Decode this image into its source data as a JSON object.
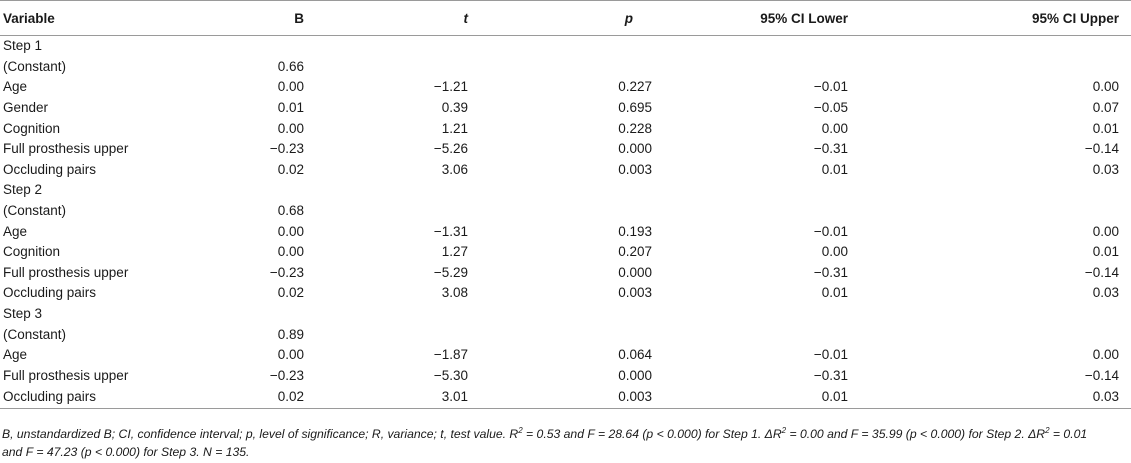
{
  "headers": {
    "variable": "Variable",
    "b": "B",
    "t": "t",
    "p": "p",
    "ci_lower": "95% CI Lower",
    "ci_upper": "95% CI Upper"
  },
  "rows": [
    {
      "type": "step",
      "label": "Step 1"
    },
    {
      "type": "data",
      "variable": "(Constant)",
      "b": "0.66",
      "t": "",
      "p": "",
      "lower": "",
      "upper": ""
    },
    {
      "type": "data",
      "variable": "Age",
      "b": "0.00",
      "t": "−1.21",
      "p": "0.227",
      "lower": "−0.01",
      "upper": "0.00"
    },
    {
      "type": "data",
      "variable": "Gender",
      "b": "0.01",
      "t": "0.39",
      "p": "0.695",
      "lower": "−0.05",
      "upper": "0.07"
    },
    {
      "type": "data",
      "variable": "Cognition",
      "b": "0.00",
      "t": "1.21",
      "p": "0.228",
      "lower": "0.00",
      "upper": "0.01"
    },
    {
      "type": "data",
      "variable": "Full prosthesis upper",
      "b": "−0.23",
      "t": "−5.26",
      "p": "0.000",
      "lower": "−0.31",
      "upper": "−0.14"
    },
    {
      "type": "data",
      "variable": "Occluding pairs",
      "b": "0.02",
      "t": "3.06",
      "p": "0.003",
      "lower": "0.01",
      "upper": "0.03"
    },
    {
      "type": "step",
      "label": "Step 2"
    },
    {
      "type": "data",
      "variable": "(Constant)",
      "b": "0.68",
      "t": "",
      "p": "",
      "lower": "",
      "upper": ""
    },
    {
      "type": "data",
      "variable": "Age",
      "b": "0.00",
      "t": "−1.31",
      "p": "0.193",
      "lower": "−0.01",
      "upper": "0.00"
    },
    {
      "type": "data",
      "variable": "Cognition",
      "b": "0.00",
      "t": "1.27",
      "p": "0.207",
      "lower": "0.00",
      "upper": "0.01"
    },
    {
      "type": "data",
      "variable": "Full prosthesis upper",
      "b": "−0.23",
      "t": "−5.29",
      "p": "0.000",
      "lower": "−0.31",
      "upper": "−0.14"
    },
    {
      "type": "data",
      "variable": "Occluding pairs",
      "b": "0.02",
      "t": "3.08",
      "p": "0.003",
      "lower": "0.01",
      "upper": "0.03"
    },
    {
      "type": "step",
      "label": "Step 3"
    },
    {
      "type": "data",
      "variable": "(Constant)",
      "b": "0.89",
      "t": "",
      "p": "",
      "lower": "",
      "upper": ""
    },
    {
      "type": "data",
      "variable": "Age",
      "b": "0.00",
      "t": "−1.87",
      "p": "0.064",
      "lower": "−0.01",
      "upper": "0.00"
    },
    {
      "type": "data",
      "variable": "Full prosthesis upper",
      "b": "−0.23",
      "t": "−5.30",
      "p": "0.000",
      "lower": "−0.31",
      "upper": "−0.14"
    },
    {
      "type": "data",
      "variable": "Occluding pairs",
      "b": "0.02",
      "t": "3.01",
      "p": "0.003",
      "lower": "0.01",
      "upper": "0.03"
    }
  ],
  "footnote": {
    "part1": "B, unstandardized B; CI, confidence interval; p, level of significance; R, variance; t, test value. R",
    "sup": "2",
    "part2": " = 0.53 and F = 28.64 (p < 0.000) for Step 1. ΔR",
    "part3": " = 0.00 and F = 35.99 (p < 0.000) for Step 2. ΔR",
    "part4": " = 0.01 and F = 47.23 (p < 0.000) for Step 3. N = 135."
  }
}
